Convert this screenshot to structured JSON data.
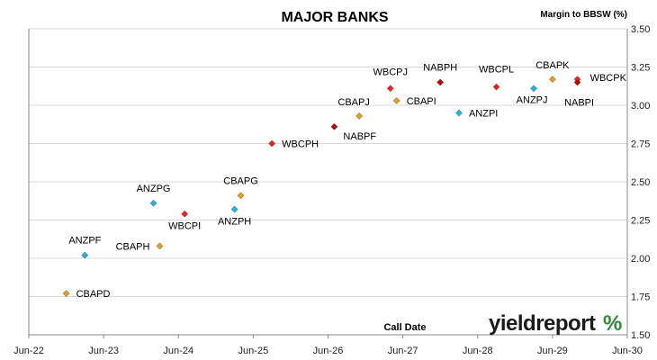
{
  "chart_data": {
    "type": "scatter",
    "title": "MAJOR BANKS",
    "ylabel": "Margin to BBSW (%)",
    "xlabel": "Call Date",
    "ylim": [
      1.5,
      3.5
    ],
    "yticks": [
      "1.50",
      "1.75",
      "2.00",
      "2.25",
      "2.50",
      "2.75",
      "3.00",
      "3.25",
      "3.50"
    ],
    "xlim": [
      "2022-06",
      "2030-06"
    ],
    "xticks": [
      "Jun-22",
      "Jun-23",
      "Jun-24",
      "Jun-25",
      "Jun-26",
      "Jun-27",
      "Jun-28",
      "Jun-29",
      "Jun-30"
    ],
    "grid": "horizontal",
    "colors": {
      "CBA": "#e6a117",
      "ANZ": "#21b5e3",
      "WBC": "#ff1a1a",
      "NAB": "#c00000"
    },
    "points": [
      {
        "name": "CBAPD",
        "bank": "CBA",
        "x": "2022-12",
        "y": 1.77
      },
      {
        "name": "ANZPF",
        "bank": "ANZ",
        "x": "2023-03",
        "y": 2.02
      },
      {
        "name": "ANZPG",
        "bank": "ANZ",
        "x": "2024-02",
        "y": 2.36
      },
      {
        "name": "CBAPH",
        "bank": "CBA",
        "x": "2024-03",
        "y": 2.08
      },
      {
        "name": "WBCPI",
        "bank": "WBC",
        "x": "2024-07",
        "y": 2.29
      },
      {
        "name": "ANZPH",
        "bank": "ANZ",
        "x": "2025-03",
        "y": 2.32
      },
      {
        "name": "CBAPG",
        "bank": "CBA",
        "x": "2025-04",
        "y": 2.41
      },
      {
        "name": "WBCPH",
        "bank": "WBC",
        "x": "2025-09",
        "y": 2.75
      },
      {
        "name": "NABPF",
        "bank": "NAB",
        "x": "2026-07",
        "y": 2.86
      },
      {
        "name": "CBAPJ",
        "bank": "CBA",
        "x": "2026-11",
        "y": 2.93
      },
      {
        "name": "WBCPJ",
        "bank": "WBC",
        "x": "2027-04",
        "y": 3.11
      },
      {
        "name": "CBAPI",
        "bank": "CBA",
        "x": "2027-05",
        "y": 3.03
      },
      {
        "name": "NABPH",
        "bank": "NAB",
        "x": "2027-12",
        "y": 3.15
      },
      {
        "name": "ANZPI",
        "bank": "ANZ",
        "x": "2028-03",
        "y": 2.95
      },
      {
        "name": "WBCPL",
        "bank": "WBC",
        "x": "2028-09",
        "y": 3.12
      },
      {
        "name": "ANZPJ",
        "bank": "ANZ",
        "x": "2029-03",
        "y": 3.11
      },
      {
        "name": "CBAPK",
        "bank": "CBA",
        "x": "2029-06",
        "y": 3.17
      },
      {
        "name": "WBCPK",
        "bank": "WBC",
        "x": "2029-10",
        "y": 3.17
      },
      {
        "name": "NABPI",
        "bank": "NAB",
        "x": "2029-10",
        "y": 3.15
      }
    ]
  },
  "brand": {
    "text": "yieldreport",
    "symbol": "%"
  }
}
